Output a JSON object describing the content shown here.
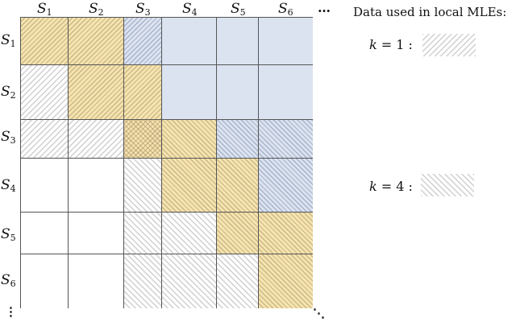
{
  "diagram": {
    "column_labels": [
      {
        "base": "S",
        "sub": "1"
      },
      {
        "base": "S",
        "sub": "2"
      },
      {
        "base": "S",
        "sub": "3"
      },
      {
        "base": "S",
        "sub": "4"
      },
      {
        "base": "S",
        "sub": "5"
      },
      {
        "base": "S",
        "sub": "6"
      }
    ],
    "row_labels": [
      {
        "base": "S",
        "sub": "1"
      },
      {
        "base": "S",
        "sub": "2"
      },
      {
        "base": "S",
        "sub": "3"
      },
      {
        "base": "S",
        "sub": "4"
      },
      {
        "base": "S",
        "sub": "5"
      },
      {
        "base": "S",
        "sub": "6"
      }
    ],
    "col_ellipsis": "…",
    "row_ellipsis": "⋮",
    "diag_ellipsis": "⋱",
    "cells": [
      [
        "yellow-fwd",
        "yellow-fwd",
        "blue-fwd",
        "blue",
        "blue",
        "blue"
      ],
      [
        "gray-fwd",
        "yellow-fwd",
        "yellow-fwd",
        "blue",
        "blue",
        "blue"
      ],
      [
        "gray-fwd",
        "gray-fwd",
        "cross",
        "yellow-back",
        "blue-back",
        "blue-back"
      ],
      [
        "white",
        "white",
        "gray-back",
        "yellow-back",
        "yellow-back",
        "blue-back"
      ],
      [
        "white",
        "white",
        "gray-back",
        "gray-back",
        "yellow-back",
        "yellow-back"
      ],
      [
        "white",
        "white",
        "gray-back",
        "gray-back",
        "gray-back",
        "yellow-back"
      ]
    ],
    "colors": {
      "yellow": "#f7e3ae",
      "blue": "#dbe3f1",
      "gray_hatch": "#cfcfcf",
      "grid_line": "#555555"
    }
  },
  "legend": {
    "title": "Data used in local MLEs:",
    "entries": [
      {
        "var": "k",
        "eq": " = 1 :",
        "pattern": "gray-fwd"
      },
      {
        "var": "k",
        "eq": " = 4 :",
        "pattern": "gray-back"
      }
    ]
  }
}
